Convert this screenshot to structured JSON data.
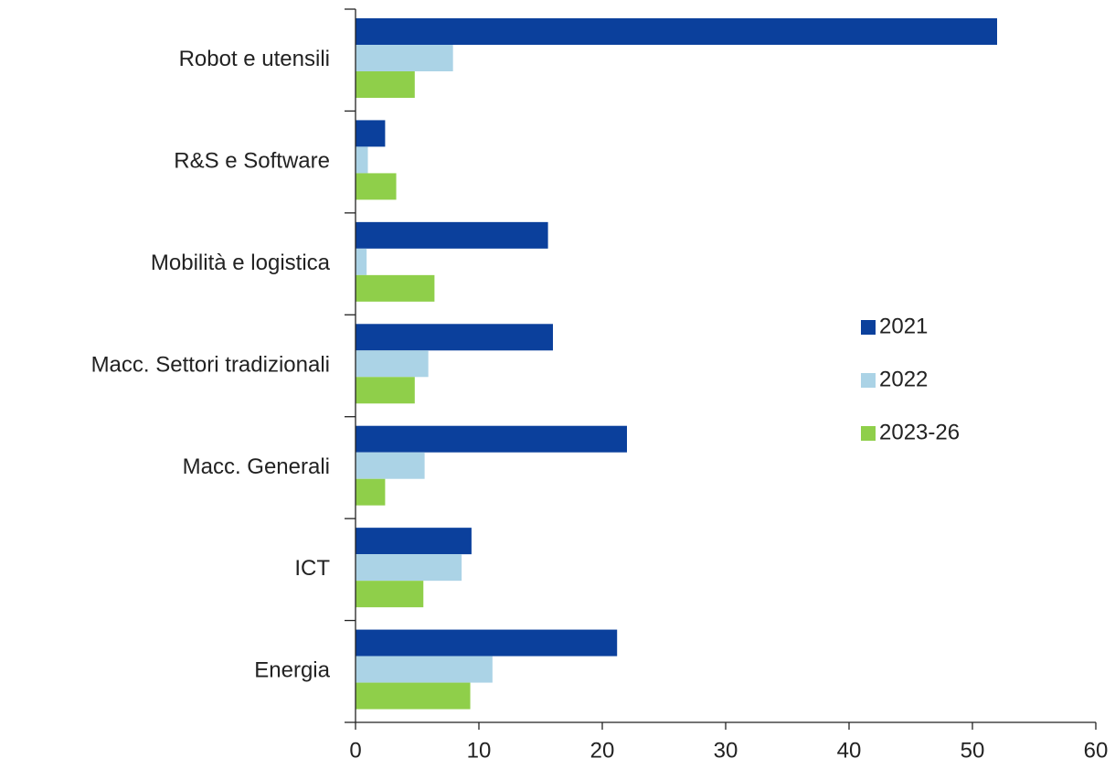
{
  "chart_data": {
    "type": "bar",
    "orientation": "horizontal",
    "categories": [
      "Robot e utensili",
      "R&S e Software",
      "Mobilità e logistica",
      "Macc. Settori tradizionali",
      "Macc. Generali",
      "ICT",
      "Energia"
    ],
    "series": [
      {
        "name": "2021",
        "color": "#0b409c",
        "values": [
          52.0,
          2.4,
          15.6,
          16.0,
          22.0,
          9.4,
          21.2
        ]
      },
      {
        "name": "2022",
        "color": "#abd3e6",
        "values": [
          7.9,
          1.0,
          0.9,
          5.9,
          5.6,
          8.6,
          11.1
        ]
      },
      {
        "name": "2023-26",
        "color": "#8fcf4a",
        "values": [
          4.8,
          3.3,
          6.4,
          4.8,
          2.4,
          5.5,
          9.3
        ]
      }
    ],
    "xlim": [
      0,
      60
    ],
    "xticks": [
      0,
      10,
      20,
      30,
      40,
      50,
      60
    ],
    "legend": "right"
  }
}
